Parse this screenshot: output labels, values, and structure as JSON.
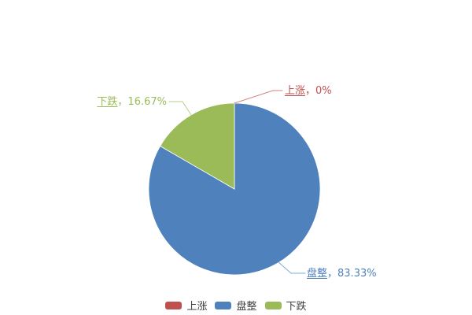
{
  "chart_data": {
    "type": "pie",
    "title": "",
    "legend_position": "bottom",
    "background_color": "#ffffff",
    "start_angle_deg": 0,
    "direction": "clockwise",
    "series": [
      {
        "key": "up",
        "name": "上涨",
        "value": 0,
        "pct_label": "0%",
        "callout_suffix": "，0%",
        "color": "#C0504D"
      },
      {
        "key": "flat",
        "name": "盘整",
        "value": 83.33,
        "pct_label": "83.33%",
        "callout_suffix": "，83.33%",
        "color": "#4F81BD"
      },
      {
        "key": "down",
        "name": "下跌",
        "value": 16.67,
        "pct_label": "16.67%",
        "callout_suffix": "，16.67%",
        "color": "#9BBB59"
      }
    ],
    "legend_text_color": "#404040"
  }
}
